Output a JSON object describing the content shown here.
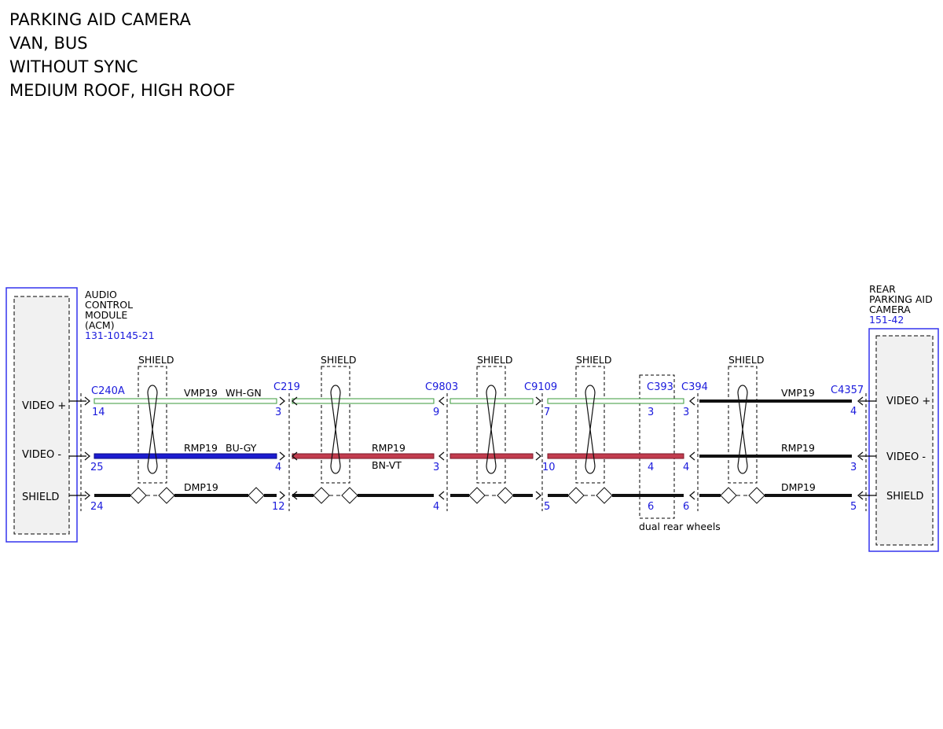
{
  "title": {
    "line1": "PARKING AID CAMERA",
    "line2": "VAN, BUS",
    "line3": "WITHOUT SYNC",
    "line4": "MEDIUM ROOF, HIGH ROOF"
  },
  "colors": {
    "module_border": "#3333ee",
    "connector_blue": "#1a1adc",
    "wire_black": "#111111",
    "wire_bu_gy": "#1c1ccf",
    "wire_bn_vt": "#c23c4e",
    "wire_wh_gn": "#3a9a3a"
  },
  "left_module": {
    "name_line1": "AUDIO",
    "name_line2": "CONTROL",
    "name_line3": "MODULE",
    "name_line4": "(ACM)",
    "ref": "131-10145-21",
    "signals": [
      "VIDEO +",
      "VIDEO -",
      "SHIELD"
    ]
  },
  "right_module": {
    "name_line1": "REAR",
    "name_line2": "PARKING AID",
    "name_line3": "CAMERA",
    "ref": "151-42",
    "signals": [
      "VIDEO +",
      "VIDEO -",
      "SHIELD"
    ]
  },
  "connectors": [
    {
      "id": "C240A",
      "pins": [
        "14",
        "25",
        "24"
      ]
    },
    {
      "id": "C219",
      "pins": [
        "3",
        "4",
        "12"
      ]
    },
    {
      "id": "C9803",
      "pins": [
        "9",
        "3",
        "4"
      ]
    },
    {
      "id": "C9109",
      "pins": [
        "7",
        "10",
        "5"
      ]
    },
    {
      "id": "C393",
      "pins": [
        "3",
        "4",
        "6"
      ]
    },
    {
      "id": "C394",
      "pins": [
        "3",
        "4",
        "6"
      ]
    },
    {
      "id": "C4357",
      "pins": [
        "4",
        "3",
        "5"
      ]
    }
  ],
  "shield_label": "SHIELD",
  "circuits": {
    "vmp19_a": "VMP19",
    "vmp19_a_color": "WH-GN",
    "vmp19_b": "VMP19",
    "rmp19_a": "RMP19",
    "rmp19_a_color": "BU-GY",
    "rmp19_b": "RMP19",
    "rmp19_b_color": "BN-VT",
    "rmp19_c": "RMP19",
    "dmp19_a": "DMP19",
    "dmp19_b": "DMP19"
  },
  "note": "dual rear wheels"
}
